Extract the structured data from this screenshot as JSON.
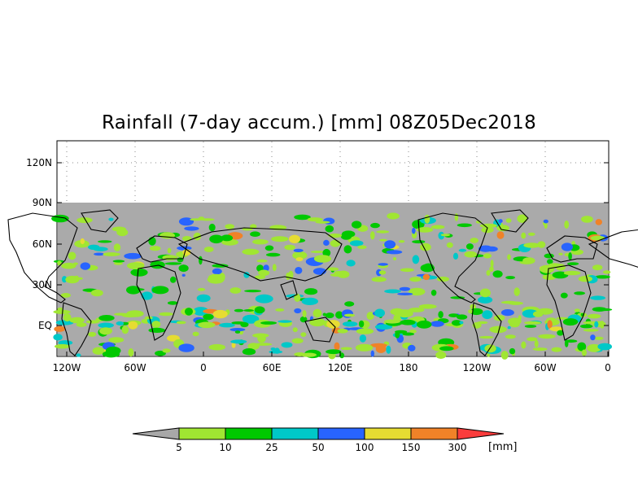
{
  "title": "Rainfall (7-day accum.) [mm] 08Z05Dec2018",
  "y_ticks": [
    "120N",
    "90N",
    "60N",
    "30N",
    "EQ"
  ],
  "x_ticks": [
    "120W",
    "60W",
    "0",
    "60E",
    "120E",
    "180",
    "120W",
    "60W",
    "0"
  ],
  "colorbar": {
    "labels": [
      "5",
      "10",
      "25",
      "50",
      "100",
      "150",
      "300"
    ],
    "unit": "[mm]",
    "colors": [
      "#a8a8a8",
      "#a0e632",
      "#00c800",
      "#00c8c8",
      "#2864ff",
      "#e6dc32",
      "#f08228",
      "#fa3c3c"
    ]
  },
  "map": {
    "background": "#aaaaaa",
    "coastline_color": "#000000",
    "grid_style": "dotted"
  }
}
